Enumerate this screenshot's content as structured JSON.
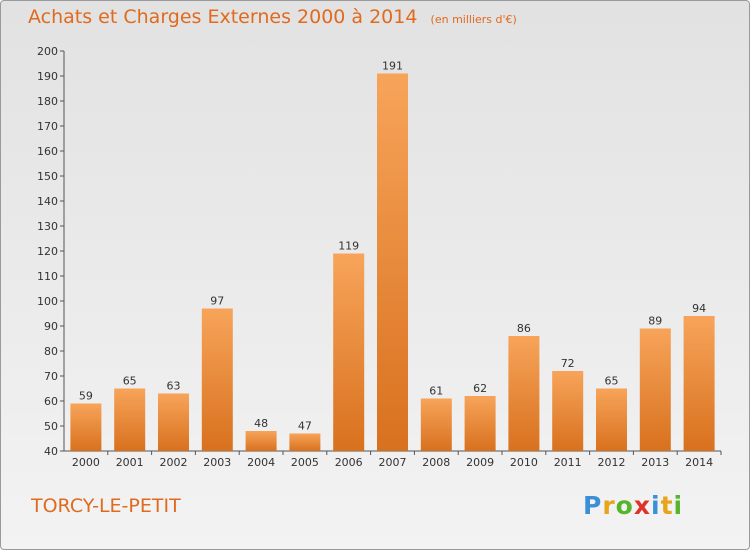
{
  "title": "Achats et Charges Externes 2000 à 2014",
  "unit": "(en milliers d'€)",
  "commune": "TORCY-LE-PETIT",
  "logo": {
    "text": "Proxiti",
    "colors": [
      "#3a8fd6",
      "#e8a51c",
      "#57b52c",
      "#e0312a",
      "#3a8fd6",
      "#e8a51c",
      "#57b52c"
    ]
  },
  "colors": {
    "accent": "#e06a1e",
    "bar_light": "#f7a45a",
    "bar_dark": "#d8711e"
  },
  "chart_data": {
    "type": "bar",
    "categories": [
      "2000",
      "2001",
      "2002",
      "2003",
      "2004",
      "2005",
      "2006",
      "2007",
      "2008",
      "2009",
      "2010",
      "2011",
      "2012",
      "2013",
      "2014"
    ],
    "values": [
      59,
      65,
      63,
      97,
      48,
      47,
      119,
      191,
      61,
      62,
      86,
      72,
      65,
      89,
      94
    ],
    "yticks": [
      40,
      50,
      60,
      70,
      80,
      90,
      100,
      110,
      120,
      130,
      140,
      150,
      160,
      170,
      180,
      190,
      200
    ],
    "ylim": [
      40,
      200
    ],
    "grid": false,
    "legend": "none"
  }
}
